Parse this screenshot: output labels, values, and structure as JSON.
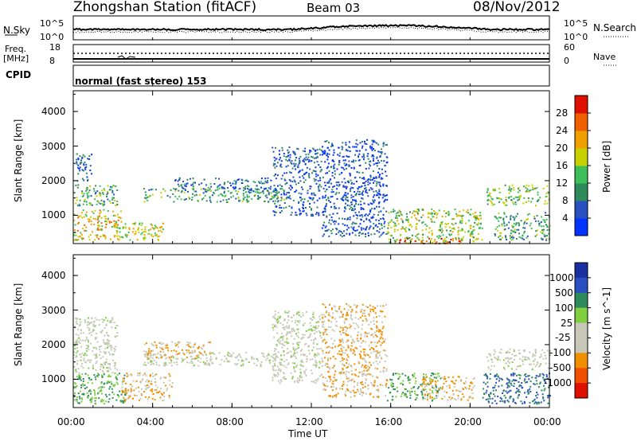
{
  "header": {
    "station": "Zhongshan Station (fitACF)",
    "beam": "Beam 03",
    "date": "08/Nov/2012"
  },
  "top_panels": {
    "nsky_label": "N.Sky",
    "nsearch_label": "N.Search",
    "noise_ticks_left": [
      "10^5",
      "10^0"
    ],
    "noise_ticks_right": [
      "10^5",
      "10^0"
    ],
    "freq_label_1": "Freq.",
    "freq_label_2": "[MHz]",
    "freq_ticks": [
      "18",
      "8"
    ],
    "nave_label": "Nave",
    "nave_ticks": [
      "60",
      "0"
    ],
    "cpid_label": "CPID",
    "cpid_value": "normal (fast stereo) 153"
  },
  "colors": {
    "power": [
      "#0033ff",
      "#2a4fc0",
      "#2f8a5c",
      "#3fbf5a",
      "#c8d000",
      "#f0a000",
      "#f06000",
      "#e01000"
    ],
    "velocity": [
      "#e01000",
      "#f05000",
      "#f09000",
      "#c8c8b8",
      "#c8c8b8",
      "#7fcf40",
      "#2f8a5c",
      "#2a4fc0",
      "#1a30a0"
    ]
  },
  "chart_data": [
    {
      "type": "heatmap",
      "name": "power",
      "xlabel": "",
      "ylabel": "Slant Range [km]",
      "x_ticks": [
        "00:00",
        "04:00",
        "08:00",
        "12:00",
        "16:00",
        "20:00",
        "00:00"
      ],
      "x_range_hours": [
        0,
        24
      ],
      "y_ticks": [
        "1000",
        "2000",
        "3000",
        "4000"
      ],
      "y_range_km": [
        180,
        4600
      ],
      "colorbar_label": "Power [dB]",
      "colorbar_ticks": [
        "4",
        "8",
        "12",
        "16",
        "20",
        "24",
        "28"
      ],
      "colorbar_range": [
        0,
        32
      ],
      "regions": [
        {
          "t0": 0.1,
          "t1": 0.9,
          "r0": 2000,
          "r1": 2800,
          "level": 6
        },
        {
          "t0": 0.0,
          "t1": 2.2,
          "r0": 1300,
          "r1": 1900,
          "level": 12
        },
        {
          "t0": 0.0,
          "t1": 2.4,
          "r0": 300,
          "r1": 1200,
          "level": 20
        },
        {
          "t0": 2.0,
          "t1": 4.5,
          "r0": 300,
          "r1": 800,
          "level": 18
        },
        {
          "t0": 3.5,
          "t1": 10.6,
          "r0": 1400,
          "r1": 1800,
          "level": 12
        },
        {
          "t0": 5.0,
          "t1": 10.0,
          "r0": 1700,
          "r1": 2100,
          "level": 8
        },
        {
          "t0": 10.0,
          "t1": 12.5,
          "r0": 1000,
          "r1": 3000,
          "level": 6
        },
        {
          "t0": 15.8,
          "t1": 20.6,
          "r0": 200,
          "r1": 1200,
          "level": 16
        },
        {
          "t0": 16.2,
          "t1": 19.5,
          "r0": 200,
          "r1": 350,
          "level": 28
        },
        {
          "t0": 20.8,
          "t1": 24.0,
          "r0": 1300,
          "r1": 1900,
          "level": 14
        },
        {
          "t0": 21.2,
          "t1": 24.0,
          "r0": 300,
          "r1": 1100,
          "level": 12
        },
        {
          "t0": 12.5,
          "t1": 15.8,
          "r0": 400,
          "r1": 3200,
          "level": 5
        }
      ]
    },
    {
      "type": "heatmap",
      "name": "velocity",
      "xlabel": "Time UT",
      "ylabel": "Slant Range [km]",
      "x_ticks": [
        "00:00",
        "04:00",
        "08:00",
        "12:00",
        "16:00",
        "20:00",
        "00:00"
      ],
      "x_range_hours": [
        0,
        24
      ],
      "y_ticks": [
        "1000",
        "2000",
        "3000",
        "4000"
      ],
      "y_range_km": [
        180,
        4600
      ],
      "colorbar_label": "Velocity [m s^-1]",
      "colorbar_ticks": [
        "1000",
        "500",
        "100",
        "25",
        "-25",
        "-100",
        "-500",
        "-1000"
      ],
      "regions": [
        {
          "t0": 0.0,
          "t1": 2.2,
          "r0": 1200,
          "r1": 2800,
          "level": 0
        },
        {
          "t0": 0.0,
          "t1": 2.6,
          "r0": 300,
          "r1": 1200,
          "level": 100
        },
        {
          "t0": 2.4,
          "t1": 5.0,
          "r0": 400,
          "r1": 1200,
          "level": -100
        },
        {
          "t0": 3.5,
          "t1": 10.6,
          "r0": 1400,
          "r1": 1800,
          "level": 0
        },
        {
          "t0": 3.5,
          "t1": 7.0,
          "r0": 1600,
          "r1": 2100,
          "level": -100
        },
        {
          "t0": 10.0,
          "t1": 12.5,
          "r0": 900,
          "r1": 3000,
          "level": 0
        },
        {
          "t0": 15.8,
          "t1": 18.5,
          "r0": 400,
          "r1": 1200,
          "level": 100
        },
        {
          "t0": 17.5,
          "t1": 20.2,
          "r0": 400,
          "r1": 1100,
          "level": -100
        },
        {
          "t0": 20.8,
          "t1": 24.0,
          "r0": 1300,
          "r1": 1900,
          "level": 0
        },
        {
          "t0": 20.6,
          "t1": 24.0,
          "r0": 300,
          "r1": 1200,
          "level": 500
        },
        {
          "t0": 12.5,
          "t1": 15.8,
          "r0": 500,
          "r1": 3200,
          "level": -100
        }
      ]
    }
  ]
}
